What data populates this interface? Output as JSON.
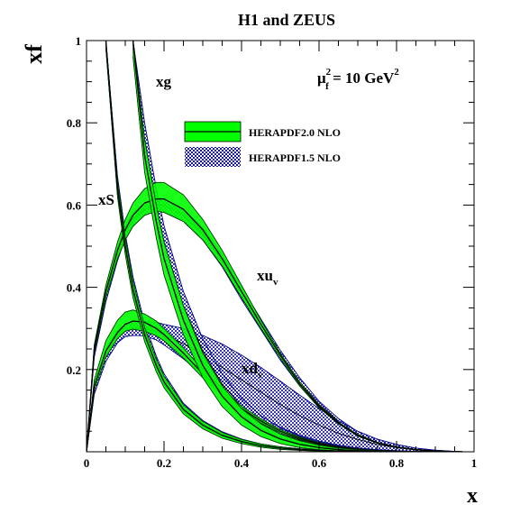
{
  "title": "H1 and ZEUS",
  "y_axis_label": "xf",
  "x_axis_label": "x",
  "scale_label": {
    "main": "μ",
    "sup": "2",
    "sub": "f",
    "rest": " = 10 GeV",
    "rest_sup": "2"
  },
  "legend": [
    {
      "label": "HERAPDF2.0 NLO",
      "style": "solid",
      "color": "#00ff00"
    },
    {
      "label": "HERAPDF1.5 NLO",
      "style": "hatched",
      "color": "#1010a0"
    }
  ],
  "curve_labels": {
    "xg": "xg",
    "xS": "xS",
    "xuv_main": "xu",
    "xuv_sub": "v",
    "xdv_main": "xd",
    "xdv_sub": "v"
  },
  "chart_data": {
    "type": "line",
    "title": "H1 and ZEUS",
    "xlabel": "x",
    "ylabel": "xf",
    "xlim": [
      0,
      1
    ],
    "ylim": [
      0,
      1
    ],
    "x_ticks": [
      "0",
      "0.2",
      "0.4",
      "0.6",
      "0.8",
      "1"
    ],
    "y_ticks": [
      "0.2",
      "0.4",
      "0.6",
      "0.8",
      "1"
    ],
    "x": [
      0.0,
      0.02,
      0.05,
      0.08,
      0.1,
      0.12,
      0.15,
      0.18,
      0.2,
      0.25,
      0.3,
      0.35,
      0.4,
      0.45,
      0.5,
      0.55,
      0.6,
      0.65,
      0.7,
      0.75,
      0.8,
      0.85,
      0.9,
      0.95,
      0.97
    ],
    "series": [
      {
        "name": "xu_v",
        "pdf_set": "HERAPDF2.0 NLO",
        "central": [
          0.0,
          0.25,
          0.39,
          0.49,
          0.54,
          0.575,
          0.605,
          0.615,
          0.615,
          0.59,
          0.54,
          0.47,
          0.39,
          0.31,
          0.235,
          0.165,
          0.11,
          0.07,
          0.04,
          0.022,
          0.011,
          0.005,
          0.002,
          0.0005,
          0.0
        ],
        "upper": [
          0.0,
          0.26,
          0.405,
          0.51,
          0.565,
          0.605,
          0.64,
          0.655,
          0.655,
          0.625,
          0.565,
          0.49,
          0.405,
          0.32,
          0.24,
          0.17,
          0.113,
          0.072,
          0.042,
          0.023,
          0.012,
          0.006,
          0.0025,
          0.0007,
          0.0
        ],
        "lower": [
          0.0,
          0.24,
          0.375,
          0.47,
          0.515,
          0.548,
          0.575,
          0.585,
          0.582,
          0.56,
          0.515,
          0.452,
          0.375,
          0.3,
          0.228,
          0.16,
          0.107,
          0.068,
          0.038,
          0.021,
          0.01,
          0.0045,
          0.0016,
          0.0003,
          0.0
        ]
      },
      {
        "name": "xu_v",
        "pdf_set": "HERAPDF1.5 NLO",
        "central": [
          0.0,
          0.24,
          0.38,
          0.48,
          0.535,
          0.565,
          0.59,
          0.6,
          0.6,
          0.575,
          0.53,
          0.465,
          0.385,
          0.31,
          0.235,
          0.17,
          0.115,
          0.075,
          0.045,
          0.025,
          0.013,
          0.006,
          0.0025,
          0.0007,
          0.0
        ],
        "upper": [
          0.0,
          0.25,
          0.395,
          0.495,
          0.55,
          0.58,
          0.605,
          0.615,
          0.615,
          0.59,
          0.545,
          0.48,
          0.4,
          0.323,
          0.247,
          0.18,
          0.123,
          0.081,
          0.049,
          0.028,
          0.015,
          0.0075,
          0.0033,
          0.001,
          0.0
        ],
        "lower": [
          0.0,
          0.23,
          0.365,
          0.465,
          0.52,
          0.55,
          0.575,
          0.585,
          0.585,
          0.56,
          0.515,
          0.45,
          0.37,
          0.297,
          0.223,
          0.16,
          0.107,
          0.069,
          0.041,
          0.022,
          0.011,
          0.0048,
          0.0018,
          0.0004,
          0.0
        ]
      },
      {
        "name": "xd_v",
        "pdf_set": "HERAPDF2.0 NLO",
        "central": [
          0.0,
          0.16,
          0.245,
          0.29,
          0.31,
          0.318,
          0.315,
          0.3,
          0.285,
          0.24,
          0.19,
          0.145,
          0.105,
          0.075,
          0.05,
          0.033,
          0.02,
          0.012,
          0.006,
          0.003,
          0.0013,
          0.0005,
          0.0002,
          0.0,
          0.0
        ],
        "upper": [
          0.0,
          0.175,
          0.27,
          0.32,
          0.34,
          0.345,
          0.335,
          0.318,
          0.3,
          0.253,
          0.2,
          0.153,
          0.111,
          0.08,
          0.054,
          0.036,
          0.022,
          0.013,
          0.007,
          0.0035,
          0.0015,
          0.0006,
          0.0002,
          0.0,
          0.0
        ],
        "lower": [
          0.0,
          0.15,
          0.23,
          0.275,
          0.293,
          0.298,
          0.293,
          0.282,
          0.27,
          0.228,
          0.18,
          0.137,
          0.099,
          0.07,
          0.046,
          0.03,
          0.018,
          0.011,
          0.005,
          0.0025,
          0.0011,
          0.0004,
          0.0001,
          0.0,
          0.0
        ]
      },
      {
        "name": "xd_v",
        "pdf_set": "HERAPDF1.5 NLO",
        "central": [
          0.0,
          0.15,
          0.235,
          0.28,
          0.295,
          0.3,
          0.3,
          0.293,
          0.285,
          0.263,
          0.235,
          0.205,
          0.175,
          0.145,
          0.115,
          0.088,
          0.065,
          0.045,
          0.03,
          0.018,
          0.01,
          0.005,
          0.002,
          0.0005,
          0.0
        ],
        "upper": [
          0.0,
          0.16,
          0.25,
          0.295,
          0.31,
          0.318,
          0.318,
          0.315,
          0.31,
          0.3,
          0.283,
          0.262,
          0.235,
          0.205,
          0.172,
          0.138,
          0.105,
          0.075,
          0.05,
          0.031,
          0.018,
          0.009,
          0.004,
          0.0012,
          0.0
        ],
        "lower": [
          0.0,
          0.14,
          0.22,
          0.265,
          0.28,
          0.283,
          0.282,
          0.272,
          0.26,
          0.226,
          0.187,
          0.148,
          0.115,
          0.085,
          0.06,
          0.04,
          0.026,
          0.016,
          0.009,
          0.005,
          0.0025,
          0.0012,
          0.0004,
          0.0001,
          0.0
        ]
      },
      {
        "name": "xg",
        "pdf_set": "HERAPDF2.0 NLO",
        "central": [
          null,
          null,
          null,
          null,
          null,
          1.0,
          0.72,
          0.56,
          0.47,
          0.32,
          0.21,
          0.135,
          0.085,
          0.052,
          0.031,
          0.018,
          0.01,
          0.005,
          0.0025,
          0.001,
          0.0005,
          0.0002,
          0.0,
          0.0,
          0.0
        ],
        "upper": [
          null,
          null,
          null,
          null,
          null,
          1.0,
          0.76,
          0.6,
          0.51,
          0.355,
          0.24,
          0.16,
          0.105,
          0.068,
          0.043,
          0.027,
          0.016,
          0.009,
          0.005,
          0.0025,
          0.0012,
          0.0005,
          0.0002,
          0.0,
          0.0
        ],
        "lower": [
          null,
          null,
          null,
          null,
          null,
          0.96,
          0.68,
          0.52,
          0.43,
          0.285,
          0.18,
          0.11,
          0.065,
          0.037,
          0.02,
          0.01,
          0.005,
          0.0022,
          0.0009,
          0.0003,
          0.0001,
          0.0,
          0.0,
          0.0,
          0.0
        ]
      },
      {
        "name": "xg",
        "pdf_set": "HERAPDF1.5 NLO",
        "central": [
          null,
          null,
          null,
          null,
          null,
          1.0,
          0.76,
          0.6,
          0.51,
          0.355,
          0.245,
          0.165,
          0.11,
          0.072,
          0.046,
          0.029,
          0.018,
          0.011,
          0.006,
          0.003,
          0.0014,
          0.0006,
          0.0002,
          0.0,
          0.0
        ],
        "upper": [
          null,
          null,
          null,
          null,
          null,
          1.0,
          0.8,
          0.64,
          0.55,
          0.39,
          0.275,
          0.19,
          0.13,
          0.088,
          0.058,
          0.038,
          0.024,
          0.015,
          0.009,
          0.005,
          0.0025,
          0.0012,
          0.0005,
          0.0001,
          0.0
        ],
        "lower": [
          null,
          null,
          null,
          null,
          null,
          0.98,
          0.72,
          0.56,
          0.47,
          0.32,
          0.215,
          0.14,
          0.09,
          0.056,
          0.034,
          0.02,
          0.012,
          0.007,
          0.0035,
          0.0016,
          0.0007,
          0.0003,
          0.0001,
          0.0,
          0.0
        ]
      },
      {
        "name": "xS",
        "pdf_set": "HERAPDF2.0 NLO",
        "central": [
          null,
          null,
          1.0,
          0.64,
          0.5,
          0.395,
          0.285,
          0.21,
          0.17,
          0.103,
          0.065,
          0.04,
          0.025,
          0.015,
          0.009,
          0.005,
          0.003,
          0.0015,
          0.0007,
          0.0003,
          0.0001,
          0.0,
          0.0,
          0.0,
          0.0
        ],
        "upper": [
          null,
          null,
          1.0,
          0.66,
          0.52,
          0.415,
          0.302,
          0.225,
          0.184,
          0.114,
          0.074,
          0.047,
          0.03,
          0.019,
          0.012,
          0.007,
          0.004,
          0.0022,
          0.0011,
          0.0005,
          0.0002,
          0.0001,
          0.0,
          0.0,
          0.0
        ],
        "lower": [
          null,
          null,
          0.98,
          0.62,
          0.48,
          0.375,
          0.268,
          0.195,
          0.156,
          0.092,
          0.056,
          0.033,
          0.02,
          0.011,
          0.006,
          0.0033,
          0.0018,
          0.0009,
          0.0004,
          0.0002,
          0.0001,
          0.0,
          0.0,
          0.0,
          0.0
        ]
      },
      {
        "name": "xS",
        "pdf_set": "HERAPDF1.5 NLO",
        "central": [
          null,
          null,
          1.0,
          0.65,
          0.51,
          0.405,
          0.295,
          0.218,
          0.177,
          0.108,
          0.068,
          0.043,
          0.027,
          0.016,
          0.01,
          0.006,
          0.0033,
          0.0018,
          0.0009,
          0.0004,
          0.0002,
          0.0001,
          0.0,
          0.0,
          0.0
        ],
        "upper": [
          null,
          null,
          1.0,
          0.67,
          0.53,
          0.425,
          0.313,
          0.233,
          0.19,
          0.118,
          0.076,
          0.049,
          0.031,
          0.019,
          0.012,
          0.0075,
          0.0043,
          0.0024,
          0.0012,
          0.0006,
          0.0003,
          0.0001,
          0.0,
          0.0,
          0.0
        ],
        "lower": [
          null,
          null,
          0.98,
          0.63,
          0.49,
          0.385,
          0.278,
          0.203,
          0.163,
          0.098,
          0.06,
          0.037,
          0.023,
          0.013,
          0.008,
          0.0045,
          0.0024,
          0.0013,
          0.0006,
          0.0003,
          0.0001,
          0.0,
          0.0,
          0.0,
          0.0
        ]
      }
    ],
    "legend_position": "upper-right inside plot",
    "grid": false
  }
}
